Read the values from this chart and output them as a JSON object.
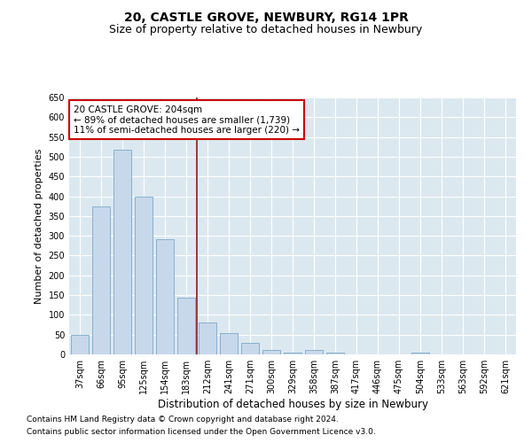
{
  "title": "20, CASTLE GROVE, NEWBURY, RG14 1PR",
  "subtitle": "Size of property relative to detached houses in Newbury",
  "xlabel": "Distribution of detached houses by size in Newbury",
  "ylabel": "Number of detached properties",
  "categories": [
    "37sqm",
    "66sqm",
    "95sqm",
    "125sqm",
    "154sqm",
    "183sqm",
    "212sqm",
    "241sqm",
    "271sqm",
    "300sqm",
    "329sqm",
    "358sqm",
    "387sqm",
    "417sqm",
    "446sqm",
    "475sqm",
    "504sqm",
    "533sqm",
    "563sqm",
    "592sqm",
    "621sqm"
  ],
  "values": [
    50,
    375,
    518,
    400,
    292,
    143,
    81,
    54,
    29,
    11,
    5,
    11,
    5,
    1,
    0,
    0,
    4,
    0,
    1,
    0,
    1
  ],
  "bar_color": "#c8d8eb",
  "bar_edge_color": "#7ba7c7",
  "vline_x_index": 5.5,
  "vline_color": "#8b1a1a",
  "annotation_text": "20 CASTLE GROVE: 204sqm\n← 89% of detached houses are smaller (1,739)\n11% of semi-detached houses are larger (220) →",
  "annotation_box_color": "white",
  "annotation_box_edge_color": "#cc0000",
  "ylim": [
    0,
    650
  ],
  "yticks": [
    0,
    50,
    100,
    150,
    200,
    250,
    300,
    350,
    400,
    450,
    500,
    550,
    600,
    650
  ],
  "footnote1": "Contains HM Land Registry data © Crown copyright and database right 2024.",
  "footnote2": "Contains public sector information licensed under the Open Government Licence v3.0.",
  "fig_bg_color": "#ffffff",
  "plot_bg_color": "#dce8f0",
  "title_fontsize": 10,
  "subtitle_fontsize": 9,
  "xlabel_fontsize": 8.5,
  "ylabel_fontsize": 8,
  "tick_fontsize": 7,
  "annotation_fontsize": 7.5,
  "footnote_fontsize": 6.5
}
